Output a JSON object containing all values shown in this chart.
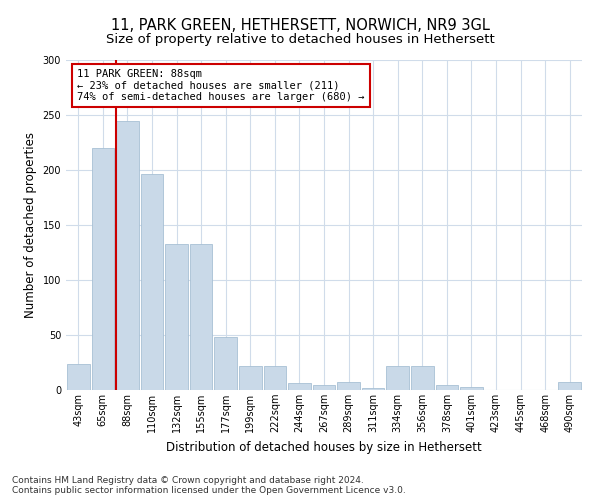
{
  "title": "11, PARK GREEN, HETHERSETT, NORWICH, NR9 3GL",
  "subtitle": "Size of property relative to detached houses in Hethersett",
  "xlabel": "Distribution of detached houses by size in Hethersett",
  "ylabel": "Number of detached properties",
  "categories": [
    "43sqm",
    "65sqm",
    "88sqm",
    "110sqm",
    "132sqm",
    "155sqm",
    "177sqm",
    "199sqm",
    "222sqm",
    "244sqm",
    "267sqm",
    "289sqm",
    "311sqm",
    "334sqm",
    "356sqm",
    "378sqm",
    "401sqm",
    "423sqm",
    "445sqm",
    "468sqm",
    "490sqm"
  ],
  "values": [
    24,
    220,
    245,
    196,
    133,
    133,
    48,
    22,
    22,
    6,
    5,
    7,
    2,
    22,
    22,
    5,
    3,
    0,
    0,
    0,
    7
  ],
  "bar_color": "#c9d9e8",
  "bar_edge_color": "#a8c0d4",
  "grid_color": "#d0dcea",
  "property_label": "11 PARK GREEN: 88sqm",
  "annotation_line1": "← 23% of detached houses are smaller (211)",
  "annotation_line2": "74% of semi-detached houses are larger (680) →",
  "annotation_box_color": "#ffffff",
  "annotation_box_edge_color": "#cc0000",
  "footnote1": "Contains HM Land Registry data © Crown copyright and database right 2024.",
  "footnote2": "Contains public sector information licensed under the Open Government Licence v3.0.",
  "ylim": [
    0,
    300
  ],
  "yticks": [
    0,
    50,
    100,
    150,
    200,
    250,
    300
  ],
  "title_fontsize": 10.5,
  "subtitle_fontsize": 9.5,
  "axis_label_fontsize": 8.5,
  "tick_fontsize": 7,
  "annotation_fontsize": 7.5,
  "footnote_fontsize": 6.5
}
